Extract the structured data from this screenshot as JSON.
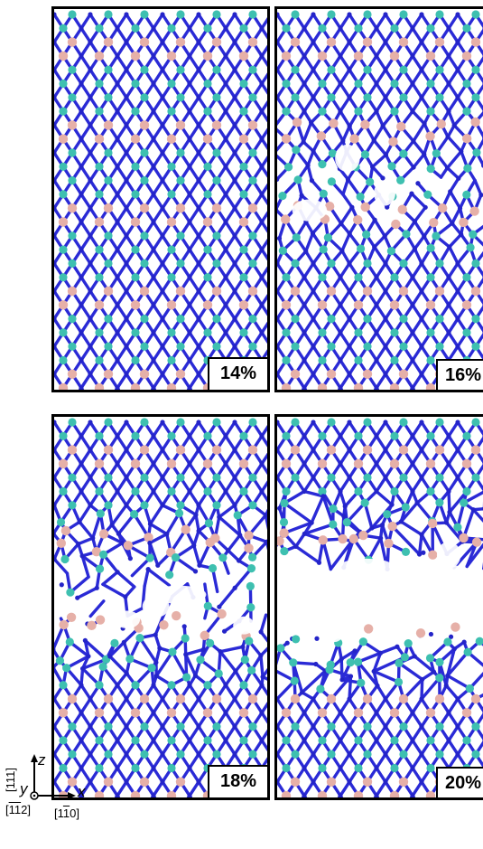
{
  "panels": [
    {
      "id": "p14",
      "label": "14%",
      "defect": 0
    },
    {
      "id": "p16",
      "label": "16%",
      "defect": 1
    },
    {
      "id": "p18",
      "label": "18%",
      "defect": 2
    },
    {
      "id": "p20",
      "label": "20%",
      "defect": 3
    }
  ],
  "axes": {
    "z_label": "z",
    "z_dir": "[111]",
    "x_label": "x",
    "x_dir_prefix": "[1",
    "x_dir_bar": "1",
    "x_dir_suffix": "0]",
    "y_label": "y",
    "y_dir_prefix": "[",
    "y_dir_bar": "11",
    "y_dir_suffix": "2]"
  },
  "colors": {
    "bond": "#2a2ad6",
    "atom_n": "#2424c8",
    "atom_cyan": "#3ec0b0",
    "atom_pink": "#e6b0a8",
    "border": "#000000"
  }
}
